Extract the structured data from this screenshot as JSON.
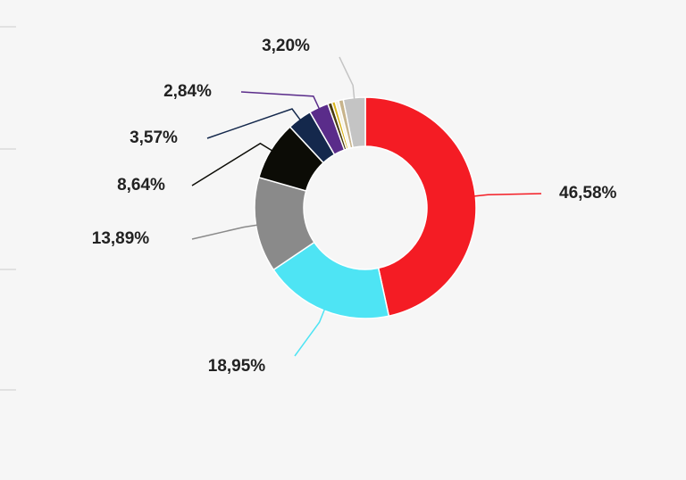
{
  "chart_data": {
    "type": "donut",
    "values": [
      46.58,
      18.95,
      13.89,
      8.64,
      3.57,
      2.84,
      0.6,
      0.5,
      0.5,
      0.7,
      3.2
    ],
    "value_labels": [
      "46,58%",
      "18,95%",
      "13,89%",
      "8,64%",
      "3,57%",
      "2,84%",
      null,
      null,
      null,
      null,
      "3,20%"
    ],
    "colors": [
      "#f41c24",
      "#4ee4f4",
      "#8a8a8a",
      "#0c0c06",
      "#14284c",
      "#5a2c8a",
      "#4a3c10",
      "#d8b41c",
      "#f4efe0",
      "#c8b48c",
      "#c4c4c4"
    ]
  }
}
